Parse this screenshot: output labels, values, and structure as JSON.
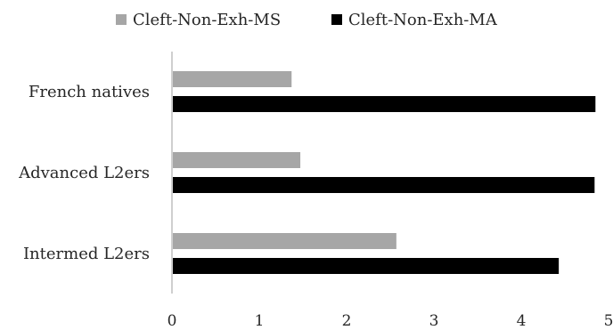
{
  "chart_data": {
    "type": "bar",
    "orientation": "horizontal",
    "categories": [
      "French natives",
      "Advanced L2ers",
      "Intermed L2ers"
    ],
    "series": [
      {
        "name": "Cleft-Non-Exh-MS",
        "color": "#a6a6a6",
        "values": [
          1.37,
          1.47,
          2.57
        ]
      },
      {
        "name": "Cleft-Non-Exh-MA",
        "color": "#000000",
        "values": [
          4.85,
          4.84,
          4.43
        ]
      }
    ],
    "xlim": [
      0,
      5
    ],
    "xticks": [
      "0",
      "1",
      "2",
      "3",
      "4",
      "5"
    ],
    "grid": false,
    "legend_position": "top",
    "title": "",
    "xlabel": "",
    "ylabel": ""
  }
}
